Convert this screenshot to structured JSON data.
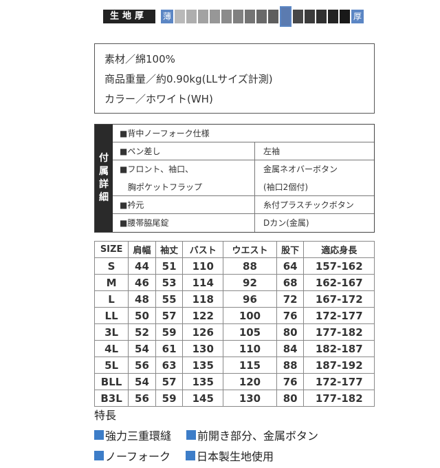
{
  "thickness": {
    "label": "生地厚",
    "thin_label": "薄",
    "thick_label": "厚",
    "steps": 15,
    "selected_level": 10,
    "accent": "#5b86c4"
  },
  "material": {
    "lines": [
      "素材／綿100%",
      "商品重量／約0.90kg(LLサイズ計測)",
      "カラー／ホワイト(WH)"
    ]
  },
  "details": {
    "side_label": [
      "付",
      "属",
      "詳",
      "細"
    ],
    "rows": [
      {
        "left": [
          "■背中ノーフォーク仕様"
        ],
        "right": []
      },
      {
        "left": [
          "■ペン差し"
        ],
        "right": [
          "左袖"
        ]
      },
      {
        "left": [
          "■フロント、袖口、",
          "　胸ポケットフラップ"
        ],
        "right": [
          "金属ネオバーボタン",
          "(袖口2個付)"
        ]
      },
      {
        "left": [
          "■衿元"
        ],
        "right": [
          "糸付プラスチックボタン"
        ]
      },
      {
        "left": [
          "■腰帯脇尾錠"
        ],
        "right": [
          "Dカン(金属)"
        ]
      }
    ]
  },
  "size_table": {
    "headers": [
      "SIZE",
      "肩幅",
      "袖丈",
      "バスト",
      "ウエスト",
      "股下",
      "適応身長"
    ],
    "rows": [
      [
        "S",
        "44",
        "51",
        "110",
        "88",
        "64",
        "157-162"
      ],
      [
        "M",
        "46",
        "53",
        "114",
        "92",
        "68",
        "162-167"
      ],
      [
        "L",
        "48",
        "55",
        "118",
        "96",
        "72",
        "167-172"
      ],
      [
        "LL",
        "50",
        "57",
        "122",
        "100",
        "76",
        "172-177"
      ],
      [
        "3L",
        "52",
        "59",
        "126",
        "105",
        "80",
        "177-182"
      ],
      [
        "4L",
        "54",
        "61",
        "130",
        "110",
        "84",
        "182-187"
      ],
      [
        "5L",
        "56",
        "63",
        "135",
        "115",
        "88",
        "187-192"
      ],
      [
        "BLL",
        "54",
        "57",
        "135",
        "120",
        "76",
        "172-177"
      ],
      [
        "B3L",
        "56",
        "59",
        "145",
        "130",
        "80",
        "177-182"
      ]
    ]
  },
  "features": {
    "title": "特長",
    "bullet_color": "#3d7dc8",
    "items": [
      [
        "強力三重環縫",
        "前開き部分、金属ボタン"
      ],
      [
        "ノーフォーク",
        "日本製生地使用"
      ]
    ]
  }
}
